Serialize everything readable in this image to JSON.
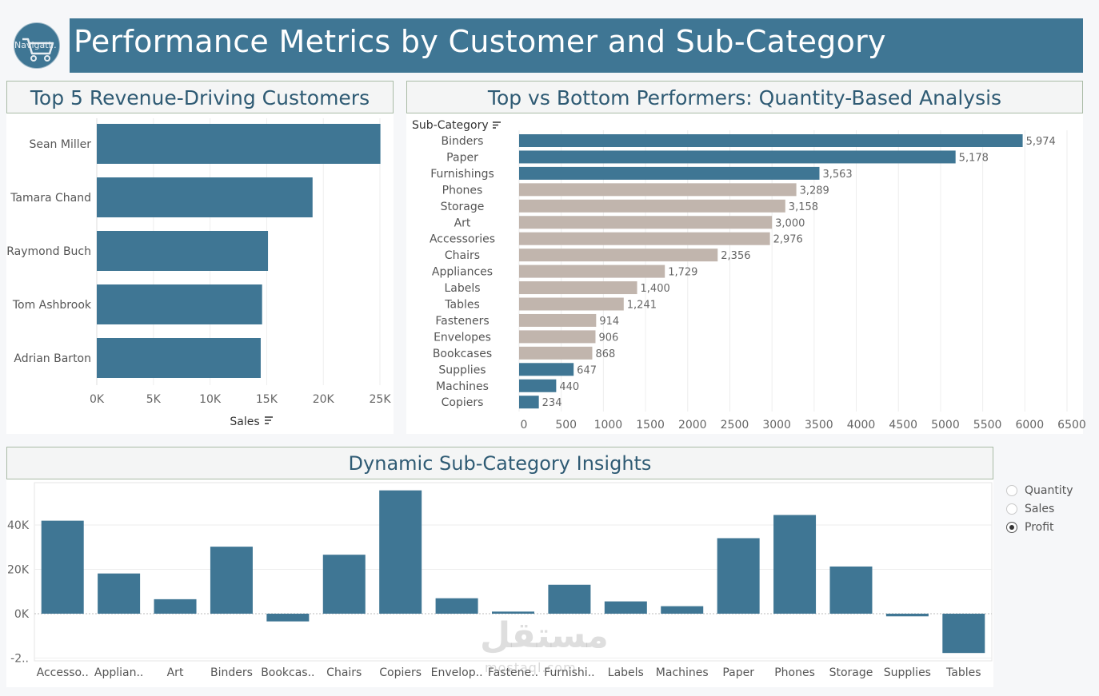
{
  "header": {
    "title": "Performance Metrics by Customer and Sub-Category",
    "nav_label": "Navigati..",
    "nav_icon": "shopping-cart-icon",
    "accent": "#3f7694"
  },
  "colors": {
    "primary": "#3f7694",
    "neutral": "#c1b5ad",
    "header_bg": "#3f7694"
  },
  "panels": {
    "customers_title": "Top 5 Revenue-Driving Customers",
    "subcat_title": "Top vs Bottom Performers: Quantity-Based Analysis",
    "insights_title": "Dynamic Sub-Category Insights"
  },
  "chart_data": [
    {
      "type": "bar",
      "orientation": "horizontal",
      "categories": [
        "Sean Miller",
        "Tamara Chand",
        "Raymond Buch",
        "Tom Ashbrook",
        "Adrian Barton"
      ],
      "values": [
        25043,
        19052,
        15117,
        14596,
        14474
      ],
      "xlabel": "Sales",
      "xlim": [
        0,
        25000
      ],
      "x_ticks": [
        "0K",
        "5K",
        "10K",
        "15K",
        "20K",
        "25K"
      ],
      "grid": true
    },
    {
      "type": "bar",
      "orientation": "horizontal",
      "row_header": "Sub-Category",
      "categories": [
        "Binders",
        "Paper",
        "Furnishings",
        "Phones",
        "Storage",
        "Art",
        "Accessories",
        "Chairs",
        "Appliances",
        "Labels",
        "Tables",
        "Fasteners",
        "Envelopes",
        "Bookcases",
        "Supplies",
        "Machines",
        "Copiers"
      ],
      "values": [
        5974,
        5178,
        3563,
        3289,
        3158,
        3000,
        2976,
        2356,
        1729,
        1400,
        1241,
        914,
        906,
        868,
        647,
        440,
        234
      ],
      "data_labels": [
        "5,974",
        "5,178",
        "3,563",
        "3,289",
        "3,158",
        "3,000",
        "2,976",
        "2,356",
        "1,729",
        "1,400",
        "1,241",
        "914",
        "906",
        "868",
        "647",
        "440",
        "234"
      ],
      "highlight": [
        "top",
        "top",
        "top",
        "rest",
        "rest",
        "rest",
        "rest",
        "rest",
        "rest",
        "rest",
        "rest",
        "rest",
        "rest",
        "rest",
        "bottom",
        "bottom",
        "bottom"
      ],
      "xlim": [
        0,
        6500
      ],
      "x_ticks": [
        "0",
        "500",
        "1000",
        "1500",
        "2000",
        "2500",
        "3000",
        "3500",
        "4000",
        "4500",
        "5000",
        "5500",
        "6000",
        "6500"
      ],
      "grid": true
    },
    {
      "type": "bar",
      "orientation": "vertical",
      "categories": [
        "Accesso..",
        "Applian..",
        "Art",
        "Binders",
        "Bookcas..",
        "Chairs",
        "Copiers",
        "Envelop..",
        "Fastene..",
        "Furnishi..",
        "Labels",
        "Machines",
        "Paper",
        "Phones",
        "Storage",
        "Supplies",
        "Tables"
      ],
      "values": [
        41937,
        18138,
        6528,
        30222,
        -3473,
        26590,
        55618,
        6964,
        950,
        13059,
        5546,
        3385,
        34054,
        44516,
        21279,
        -1189,
        -17725
      ],
      "ylim": [
        -22000,
        57000
      ],
      "y_ticks": [
        "40K",
        "20K",
        "0K",
        "-2.."
      ],
      "grid": true
    }
  ],
  "parameter": {
    "options": [
      "Quantity",
      "Sales",
      "Profit"
    ],
    "selected": "Profit"
  },
  "watermark": {
    "text": "مستقل",
    "sub": "mostaql.com"
  }
}
